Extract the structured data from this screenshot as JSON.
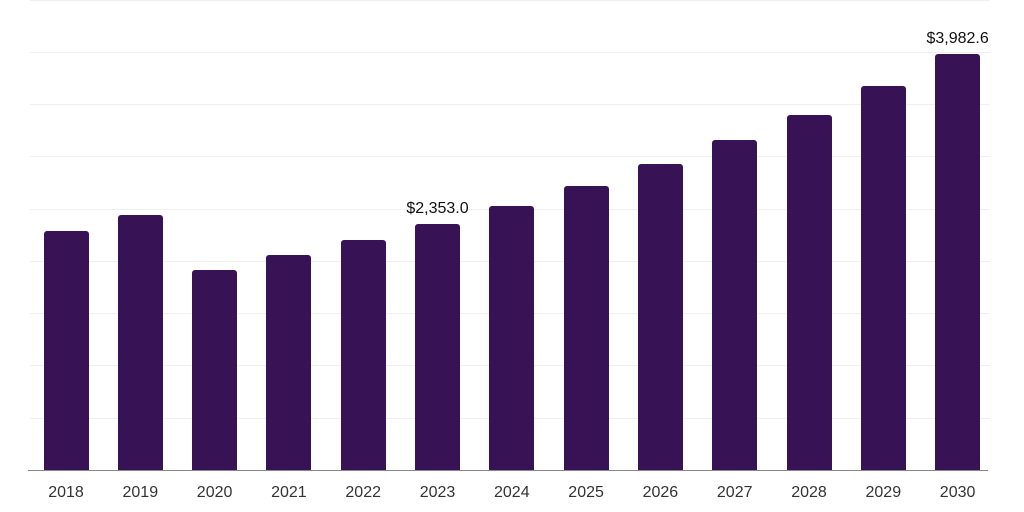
{
  "chart_data": {
    "type": "bar",
    "title": "",
    "xlabel": "",
    "ylabel": "",
    "categories": [
      "2018",
      "2019",
      "2020",
      "2021",
      "2022",
      "2023",
      "2024",
      "2025",
      "2026",
      "2027",
      "2028",
      "2029",
      "2030"
    ],
    "values": [
      2290,
      2440,
      1915,
      2055,
      2200,
      2353.0,
      2525,
      2715,
      2925,
      3155,
      3400,
      3675,
      3982.6
    ],
    "value_labels": [
      {
        "index": 5,
        "text": "$2,353.0"
      },
      {
        "index": 12,
        "text": "$3,982.6"
      }
    ],
    "ylim": [
      0,
      4500
    ],
    "grid_step": 500,
    "grid": true,
    "legend": false,
    "y_tick_labels_visible": false,
    "colors": {
      "bar": "#371254",
      "gridline": "#f0f0f0",
      "axis_line": "#888888",
      "tick_label": "#333333",
      "value_label": "#111111",
      "background": "#ffffff"
    }
  }
}
